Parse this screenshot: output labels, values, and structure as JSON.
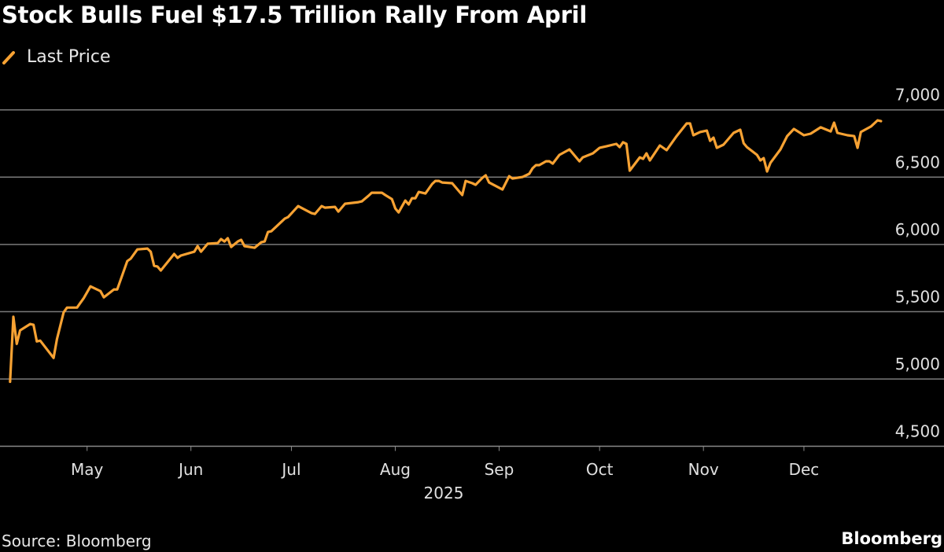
{
  "title": "Stock Bulls Fuel $17.5 Trillion Rally From April",
  "source": "Source: Bloomberg",
  "brand": "Bloomberg",
  "chart_data": {
    "type": "line",
    "title": "Stock Bulls Fuel $17.5 Trillion Rally From April",
    "xlabel": "2025",
    "ylabel": "",
    "legend": {
      "placement": "top-left"
    },
    "grid": {
      "horizontal": true,
      "vertical": false
    },
    "xlim": [
      "2025-04-05",
      "2026-01-09"
    ],
    "ylim": [
      4500,
      7000
    ],
    "x_ticks": [
      {
        "date": "2025-05-01",
        "label": "May"
      },
      {
        "date": "2025-06-01",
        "label": "Jun"
      },
      {
        "date": "2025-07-01",
        "label": "Jul"
      },
      {
        "date": "2025-08-01",
        "label": "Aug"
      },
      {
        "date": "2025-09-01",
        "label": "Sep"
      },
      {
        "date": "2025-10-01",
        "label": "Oct"
      },
      {
        "date": "2025-11-01",
        "label": "Nov"
      },
      {
        "date": "2025-12-01",
        "label": "Dec"
      }
    ],
    "y_ticks": [
      {
        "value": 4500,
        "label": "4,500"
      },
      {
        "value": 5000,
        "label": "5,000"
      },
      {
        "value": 5500,
        "label": "5,500"
      },
      {
        "value": 6000,
        "label": "6,000"
      },
      {
        "value": 6500,
        "label": "6,500"
      },
      {
        "value": 7000,
        "label": "7,000"
      }
    ],
    "series": [
      {
        "name": "Last Price",
        "color": "#f7a233",
        "points": [
          [
            "2025-04-08",
            4979
          ],
          [
            "2025-04-09",
            5462
          ],
          [
            "2025-04-10",
            5261
          ],
          [
            "2025-04-11",
            5361
          ],
          [
            "2025-04-14",
            5408
          ],
          [
            "2025-04-15",
            5402
          ],
          [
            "2025-04-16",
            5279
          ],
          [
            "2025-04-17",
            5285
          ],
          [
            "2025-04-21",
            5156
          ],
          [
            "2025-04-22",
            5296
          ],
          [
            "2025-04-24",
            5495
          ],
          [
            "2025-04-25",
            5530
          ],
          [
            "2025-04-28",
            5530
          ],
          [
            "2025-04-29",
            5566
          ],
          [
            "2025-04-30",
            5601
          ],
          [
            "2025-05-02",
            5688
          ],
          [
            "2025-05-05",
            5653
          ],
          [
            "2025-05-06",
            5607
          ],
          [
            "2025-05-09",
            5665
          ],
          [
            "2025-05-10",
            5665
          ],
          [
            "2025-05-13",
            5876
          ],
          [
            "2025-05-14",
            5894
          ],
          [
            "2025-05-16",
            5963
          ],
          [
            "2025-05-19",
            5969
          ],
          [
            "2025-05-20",
            5946
          ],
          [
            "2025-05-21",
            5841
          ],
          [
            "2025-05-22",
            5836
          ],
          [
            "2025-05-23",
            5806
          ],
          [
            "2025-05-27",
            5929
          ],
          [
            "2025-05-28",
            5900
          ],
          [
            "2025-05-29",
            5917
          ],
          [
            "2025-06-02",
            5946
          ],
          [
            "2025-06-03",
            5987
          ],
          [
            "2025-06-04",
            5946
          ],
          [
            "2025-06-06",
            6005
          ],
          [
            "2025-06-09",
            6010
          ],
          [
            "2025-06-10",
            6040
          ],
          [
            "2025-06-11",
            6022
          ],
          [
            "2025-06-12",
            6046
          ],
          [
            "2025-06-13",
            5981
          ],
          [
            "2025-06-15",
            6022
          ],
          [
            "2025-06-16",
            6034
          ],
          [
            "2025-06-17",
            5987
          ],
          [
            "2025-06-20",
            5975
          ],
          [
            "2025-06-22",
            6016
          ],
          [
            "2025-06-23",
            6022
          ],
          [
            "2025-06-24",
            6092
          ],
          [
            "2025-06-25",
            6098
          ],
          [
            "2025-06-28",
            6168
          ],
          [
            "2025-06-29",
            6191
          ],
          [
            "2025-06-30",
            6203
          ],
          [
            "2025-07-03",
            6285
          ],
          [
            "2025-07-07",
            6232
          ],
          [
            "2025-07-08",
            6226
          ],
          [
            "2025-07-10",
            6285
          ],
          [
            "2025-07-11",
            6273
          ],
          [
            "2025-07-14",
            6279
          ],
          [
            "2025-07-15",
            6244
          ],
          [
            "2025-07-17",
            6302
          ],
          [
            "2025-07-21",
            6314
          ],
          [
            "2025-07-22",
            6320
          ],
          [
            "2025-07-24",
            6361
          ],
          [
            "2025-07-25",
            6384
          ],
          [
            "2025-07-28",
            6384
          ],
          [
            "2025-07-29",
            6367
          ],
          [
            "2025-07-31",
            6337
          ],
          [
            "2025-08-01",
            6267
          ],
          [
            "2025-08-02",
            6238
          ],
          [
            "2025-08-04",
            6326
          ],
          [
            "2025-08-05",
            6297
          ],
          [
            "2025-08-06",
            6343
          ],
          [
            "2025-08-07",
            6343
          ],
          [
            "2025-08-08",
            6390
          ],
          [
            "2025-08-10",
            6378
          ],
          [
            "2025-08-12",
            6449
          ],
          [
            "2025-08-13",
            6472
          ],
          [
            "2025-08-14",
            6472
          ],
          [
            "2025-08-15",
            6460
          ],
          [
            "2025-08-18",
            6455
          ],
          [
            "2025-08-20",
            6396
          ],
          [
            "2025-08-21",
            6367
          ],
          [
            "2025-08-22",
            6472
          ],
          [
            "2025-08-24",
            6455
          ],
          [
            "2025-08-25",
            6443
          ],
          [
            "2025-08-27",
            6495
          ],
          [
            "2025-08-28",
            6513
          ],
          [
            "2025-08-29",
            6460
          ],
          [
            "2025-09-02",
            6408
          ],
          [
            "2025-09-04",
            6507
          ],
          [
            "2025-09-05",
            6490
          ],
          [
            "2025-09-08",
            6501
          ],
          [
            "2025-09-10",
            6525
          ],
          [
            "2025-09-11",
            6566
          ],
          [
            "2025-09-12",
            6589
          ],
          [
            "2025-09-13",
            6589
          ],
          [
            "2025-09-15",
            6618
          ],
          [
            "2025-09-16",
            6618
          ],
          [
            "2025-09-17",
            6600
          ],
          [
            "2025-09-19",
            6665
          ],
          [
            "2025-09-22",
            6706
          ],
          [
            "2025-09-25",
            6618
          ],
          [
            "2025-09-26",
            6647
          ],
          [
            "2025-09-29",
            6677
          ],
          [
            "2025-10-01",
            6718
          ],
          [
            "2025-10-03",
            6729
          ],
          [
            "2025-10-05",
            6741
          ],
          [
            "2025-10-06",
            6747
          ],
          [
            "2025-10-07",
            6723
          ],
          [
            "2025-10-08",
            6759
          ],
          [
            "2025-10-09",
            6747
          ],
          [
            "2025-10-10",
            6548
          ],
          [
            "2025-10-13",
            6647
          ],
          [
            "2025-10-14",
            6636
          ],
          [
            "2025-10-15",
            6677
          ],
          [
            "2025-10-16",
            6624
          ],
          [
            "2025-10-19",
            6735
          ],
          [
            "2025-10-21",
            6700
          ],
          [
            "2025-10-24",
            6805
          ],
          [
            "2025-10-27",
            6899
          ],
          [
            "2025-10-28",
            6899
          ],
          [
            "2025-10-29",
            6811
          ],
          [
            "2025-10-31",
            6835
          ],
          [
            "2025-11-02",
            6846
          ],
          [
            "2025-11-03",
            6770
          ],
          [
            "2025-11-04",
            6793
          ],
          [
            "2025-11-05",
            6718
          ],
          [
            "2025-11-07",
            6741
          ],
          [
            "2025-11-10",
            6829
          ],
          [
            "2025-11-12",
            6852
          ],
          [
            "2025-11-13",
            6752
          ],
          [
            "2025-11-14",
            6723
          ],
          [
            "2025-11-17",
            6665
          ],
          [
            "2025-11-18",
            6624
          ],
          [
            "2025-11-19",
            6641
          ],
          [
            "2025-11-20",
            6542
          ],
          [
            "2025-11-21",
            6606
          ],
          [
            "2025-11-24",
            6706
          ],
          [
            "2025-11-26",
            6805
          ],
          [
            "2025-11-28",
            6858
          ],
          [
            "2025-12-01",
            6811
          ],
          [
            "2025-12-03",
            6823
          ],
          [
            "2025-12-06",
            6870
          ],
          [
            "2025-12-09",
            6840
          ],
          [
            "2025-12-10",
            6905
          ],
          [
            "2025-12-11",
            6829
          ],
          [
            "2025-12-14",
            6811
          ],
          [
            "2025-12-16",
            6805
          ],
          [
            "2025-12-17",
            6718
          ],
          [
            "2025-12-18",
            6835
          ],
          [
            "2025-12-21",
            6876
          ],
          [
            "2025-12-23",
            6922
          ],
          [
            "2025-12-24",
            6916
          ]
        ]
      }
    ]
  }
}
